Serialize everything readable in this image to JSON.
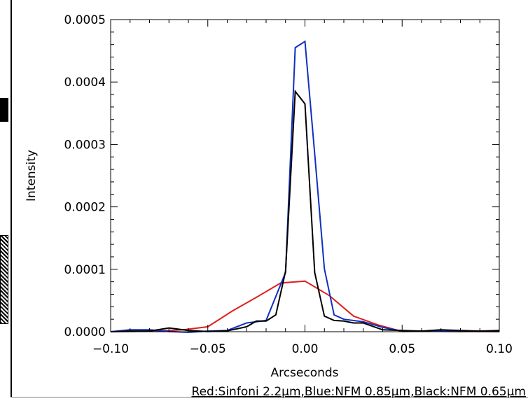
{
  "chart_data": {
    "type": "line",
    "title": "",
    "xlabel": "Arcseconds",
    "ylabel": "Intensity",
    "caption": "Red:Sinfoni 2.2μm,Blue:NFM 0.85μm,Black:NFM 0.65μm",
    "xlim": [
      -0.1,
      0.1
    ],
    "ylim": [
      0,
      0.0005
    ],
    "xticks": [
      "−0.10",
      "−0.05",
      "0.00",
      "0.05",
      "0.10"
    ],
    "yticks": [
      "0.0000",
      "0.0001",
      "0.0002",
      "0.0003",
      "0.0004",
      "0.0005"
    ],
    "series": [
      {
        "color": "#e02020",
        "x": [
          -0.1,
          -0.0875,
          -0.075,
          -0.0625,
          -0.05,
          -0.0375,
          -0.025,
          -0.0125,
          0.0,
          0.0125,
          0.025,
          0.0375,
          0.05,
          0.0625,
          0.075,
          0.0875,
          0.1
        ],
        "y": [
          0.0,
          4e-07,
          1.3e-06,
          3e-06,
          8e-06,
          3.3e-05,
          5.5e-05,
          7.8e-05,
          8.1e-05,
          5.8e-05,
          2.5e-05,
          1.1e-05,
          3e-07,
          1e-06,
          2e-07,
          3e-07,
          1e-07
        ]
      },
      {
        "color": "#1030c0",
        "x": [
          -0.1,
          -0.09,
          -0.08,
          -0.07,
          -0.06,
          -0.05,
          -0.04,
          -0.03,
          -0.025,
          -0.02,
          -0.01,
          -0.005,
          0.0,
          0.005,
          0.01,
          0.015,
          0.02,
          0.03,
          0.04,
          0.05,
          0.06,
          0.07,
          0.08,
          0.09,
          0.1
        ],
        "y": [
          0.0,
          3e-06,
          3e-06,
          3e-07,
          -1e-06,
          1e-06,
          2e-06,
          1.4e-05,
          1.6e-05,
          1.8e-05,
          9.5e-05,
          0.000455,
          0.000465,
          0.000285,
          0.000101,
          2.7e-05,
          2e-05,
          1.6e-05,
          7e-06,
          1e-06,
          1e-06,
          1e-06,
          4e-07,
          1e-06,
          2e-07
        ]
      },
      {
        "color": "#000000",
        "x": [
          -0.1,
          -0.09,
          -0.08,
          -0.07,
          -0.06,
          -0.05,
          -0.04,
          -0.03,
          -0.025,
          -0.02,
          -0.015,
          -0.01,
          -0.005,
          0.0,
          0.005,
          0.01,
          0.015,
          0.02,
          0.025,
          0.03,
          0.04,
          0.05,
          0.06,
          0.07,
          0.08,
          0.09,
          0.1
        ],
        "y": [
          0.0,
          1e-06,
          1e-06,
          6e-06,
          2e-06,
          3e-07,
          1.3e-06,
          8e-06,
          1.7e-05,
          1.7e-05,
          2.7e-05,
          9.7e-05,
          0.000385,
          0.000365,
          9.5e-05,
          2.5e-05,
          1.8e-05,
          1.7e-05,
          1.4e-05,
          1.4e-05,
          3e-06,
          2e-06,
          1e-06,
          3e-06,
          2e-06,
          1e-06,
          2e-06
        ]
      }
    ]
  }
}
